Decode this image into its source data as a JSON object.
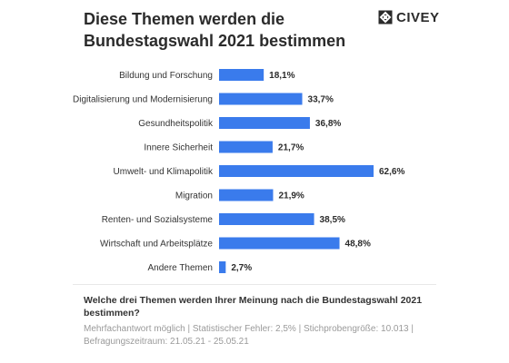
{
  "header": {
    "title": "Diese Themen werden die Bundestagswahl 2021 bestimmen",
    "brand": "CIVEY",
    "logo_icon": "civey-logo-icon"
  },
  "chart_data": {
    "type": "bar",
    "orientation": "horizontal",
    "categories": [
      "Bildung und Forschung",
      "Digitalisierung und Modernisierung",
      "Gesundheitspolitik",
      "Innere Sicherheit",
      "Umwelt- und Klimapolitik",
      "Migration",
      "Renten- und Sozialsysteme",
      "Wirtschaft und Arbeitsplätze",
      "Andere Themen"
    ],
    "values": [
      18.1,
      33.7,
      36.8,
      21.7,
      62.6,
      21.9,
      38.5,
      48.8,
      2.7
    ],
    "value_labels": [
      "18,1%",
      "33,7%",
      "36,8%",
      "21,7%",
      "62,6%",
      "21,9%",
      "38,5%",
      "48,8%",
      "2,7%"
    ],
    "xlim": [
      0,
      62.6
    ],
    "grid": false,
    "bar_color": "#3a7bec",
    "title": "Diese Themen werden die Bundestagswahl 2021 bestimmen"
  },
  "footer": {
    "question": "Welche drei Themen werden Ihrer Meinung nach die Bundestagswahl 2021 bestimmen?",
    "meta": "Mehrfachantwort möglich | Statistischer Fehler: 2,5% | Stichprobengröße: 10.013 | Befragungszeitraum: 21.05.21 - 25.05.21"
  }
}
